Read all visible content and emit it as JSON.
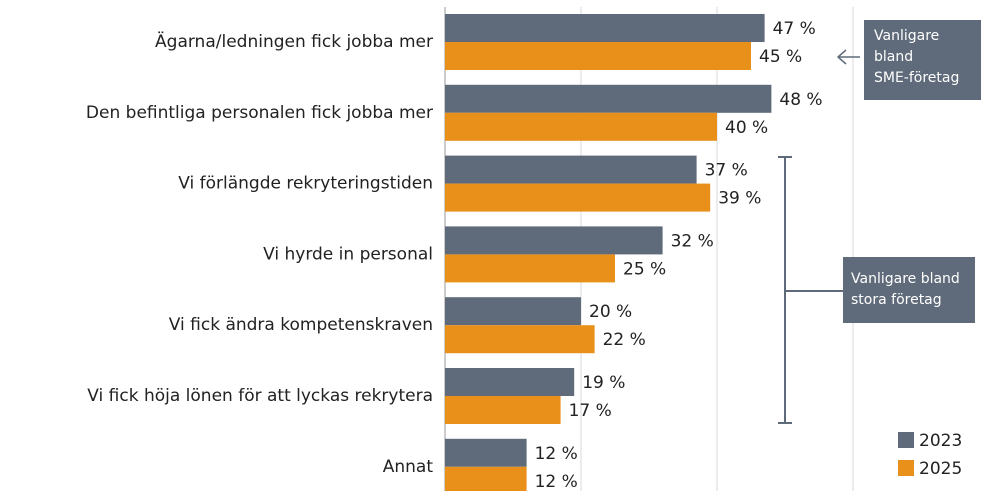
{
  "chart_data": {
    "type": "bar",
    "orientation": "horizontal",
    "categories": [
      "Ägarna/ledningen fick jobba mer",
      "Den befintliga personalen fick jobba mer",
      "Vi förlängde rekryteringstiden",
      "Vi hyrde in personal",
      "Vi fick ändra kompetenskraven",
      "Vi fick höja lönen för att lyckas rekrytera",
      "Annat"
    ],
    "series": [
      {
        "name": "2023",
        "color": "#5f6b7a",
        "values": [
          47,
          48,
          37,
          32,
          20,
          19,
          12
        ],
        "value_labels": [
          "47 %",
          "48 %",
          "37 %",
          "32 %",
          "20 %",
          "19 %",
          "12 %"
        ]
      },
      {
        "name": "2025",
        "color": "#e8901a",
        "values": [
          45,
          40,
          39,
          25,
          22,
          17,
          12
        ],
        "value_labels": [
          "45 %",
          "40 %",
          "39 %",
          "25 %",
          "22 %",
          "17 %",
          "12 %"
        ]
      }
    ],
    "xlim": [
      0,
      70
    ],
    "xticks": [
      0,
      20,
      40,
      60
    ],
    "grid": true,
    "legend": "lower right",
    "annotations": [
      {
        "lines": [
          "Vanligare",
          "bland",
          "SME-företag"
        ]
      },
      {
        "lines": [
          "Vanligare bland",
          "stora företag"
        ]
      }
    ]
  }
}
